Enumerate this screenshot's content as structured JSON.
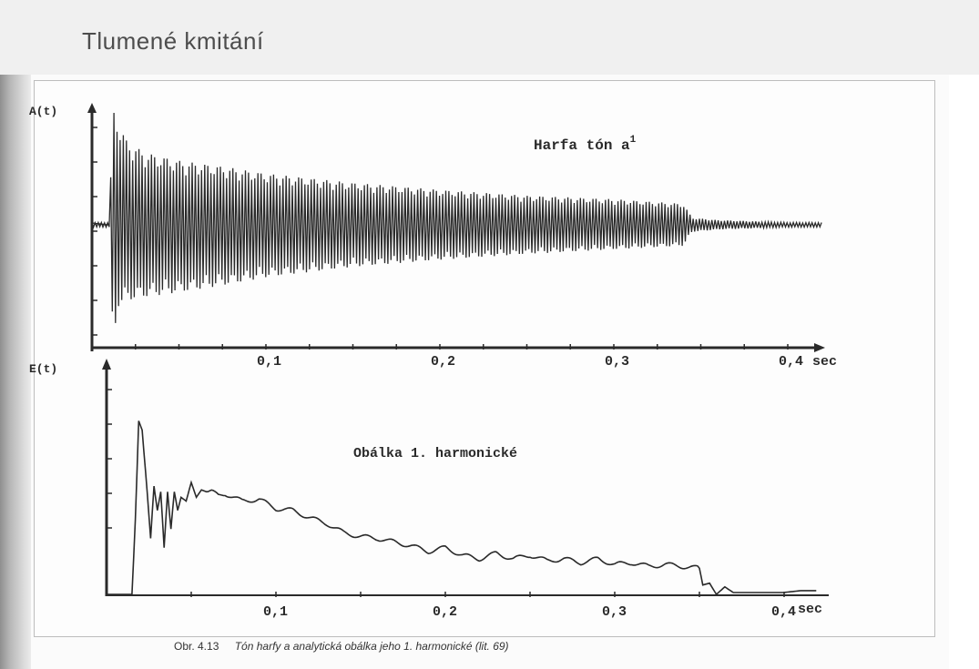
{
  "page": {
    "title": "Tlumené kmitání"
  },
  "figure": {
    "caption_number": "Obr. 4.13",
    "caption_text": "Tón harfy a analytická obálka jeho 1. harmonické (lit. 69)"
  },
  "colors": {
    "ink": "#2a2a2a",
    "header_bg": "#f0f0f0",
    "paper": "#fdfdfd"
  },
  "chart_data": [
    {
      "type": "line",
      "title": "Harfa tón a",
      "title_superscript": "1",
      "ylabel": "A(t)",
      "xlabel": "sec",
      "x_unit": "sec",
      "x_ticks": [
        0.1,
        0.2,
        0.3,
        0.4
      ],
      "x_tick_labels": [
        "0,1",
        "0,2",
        "0,3",
        "0,4"
      ],
      "xlim": [
        0,
        0.43
      ],
      "ylim": [
        -1.1,
        1.1
      ],
      "grid": false,
      "series": [
        {
          "description": "damped oscillation envelope (amplitude vs time)",
          "x": [
            0.0,
            0.01,
            0.012,
            0.015,
            0.02,
            0.03,
            0.05,
            0.075,
            0.1,
            0.15,
            0.2,
            0.25,
            0.3,
            0.34,
            0.345,
            0.36,
            0.38,
            0.4,
            0.42
          ],
          "upper": [
            0.02,
            0.02,
            1.0,
            0.9,
            0.72,
            0.62,
            0.55,
            0.5,
            0.44,
            0.36,
            0.3,
            0.25,
            0.22,
            0.18,
            0.06,
            0.04,
            0.03,
            0.02,
            0.02
          ],
          "lower": [
            -0.02,
            -0.02,
            -1.1,
            -0.7,
            -0.65,
            -0.62,
            -0.58,
            -0.52,
            -0.45,
            -0.36,
            -0.3,
            -0.25,
            -0.21,
            -0.18,
            -0.06,
            -0.04,
            -0.03,
            -0.02,
            -0.02
          ]
        }
      ]
    },
    {
      "type": "line",
      "title": "Obálka 1. harmonické",
      "ylabel": "E(t)",
      "xlabel": "sec",
      "x_unit": "sec",
      "x_ticks": [
        0.1,
        0.2,
        0.3,
        0.4
      ],
      "x_tick_labels": [
        "0,1",
        "0,2",
        "0,3",
        "0,4"
      ],
      "xlim": [
        0,
        0.43
      ],
      "ylim": [
        0,
        1.0
      ],
      "grid": false,
      "series": [
        {
          "description": "analytic envelope of the 1st harmonic",
          "x": [
            0.0,
            0.015,
            0.017,
            0.019,
            0.021,
            0.024,
            0.026,
            0.028,
            0.03,
            0.032,
            0.034,
            0.036,
            0.038,
            0.04,
            0.042,
            0.044,
            0.047,
            0.05,
            0.053,
            0.056,
            0.059,
            0.062,
            0.066,
            0.07,
            0.08,
            0.09,
            0.1,
            0.11,
            0.12,
            0.13,
            0.14,
            0.15,
            0.16,
            0.17,
            0.18,
            0.19,
            0.2,
            0.21,
            0.22,
            0.23,
            0.24,
            0.25,
            0.26,
            0.27,
            0.28,
            0.29,
            0.3,
            0.31,
            0.32,
            0.33,
            0.34,
            0.35,
            0.352,
            0.356,
            0.36,
            0.365,
            0.37,
            0.38,
            0.39,
            0.4,
            0.41,
            0.42
          ],
          "y": [
            0.0,
            0.0,
            0.4,
            0.93,
            0.88,
            0.55,
            0.3,
            0.58,
            0.45,
            0.55,
            0.25,
            0.55,
            0.35,
            0.55,
            0.45,
            0.52,
            0.5,
            0.6,
            0.52,
            0.56,
            0.55,
            0.55,
            0.53,
            0.54,
            0.5,
            0.51,
            0.46,
            0.45,
            0.41,
            0.38,
            0.33,
            0.31,
            0.3,
            0.28,
            0.26,
            0.23,
            0.25,
            0.21,
            0.19,
            0.22,
            0.19,
            0.21,
            0.18,
            0.19,
            0.17,
            0.19,
            0.16,
            0.17,
            0.15,
            0.16,
            0.15,
            0.14,
            0.05,
            0.06,
            0.0,
            0.04,
            0.01,
            0.01,
            0.01,
            0.01,
            0.02,
            0.02
          ]
        }
      ]
    }
  ]
}
